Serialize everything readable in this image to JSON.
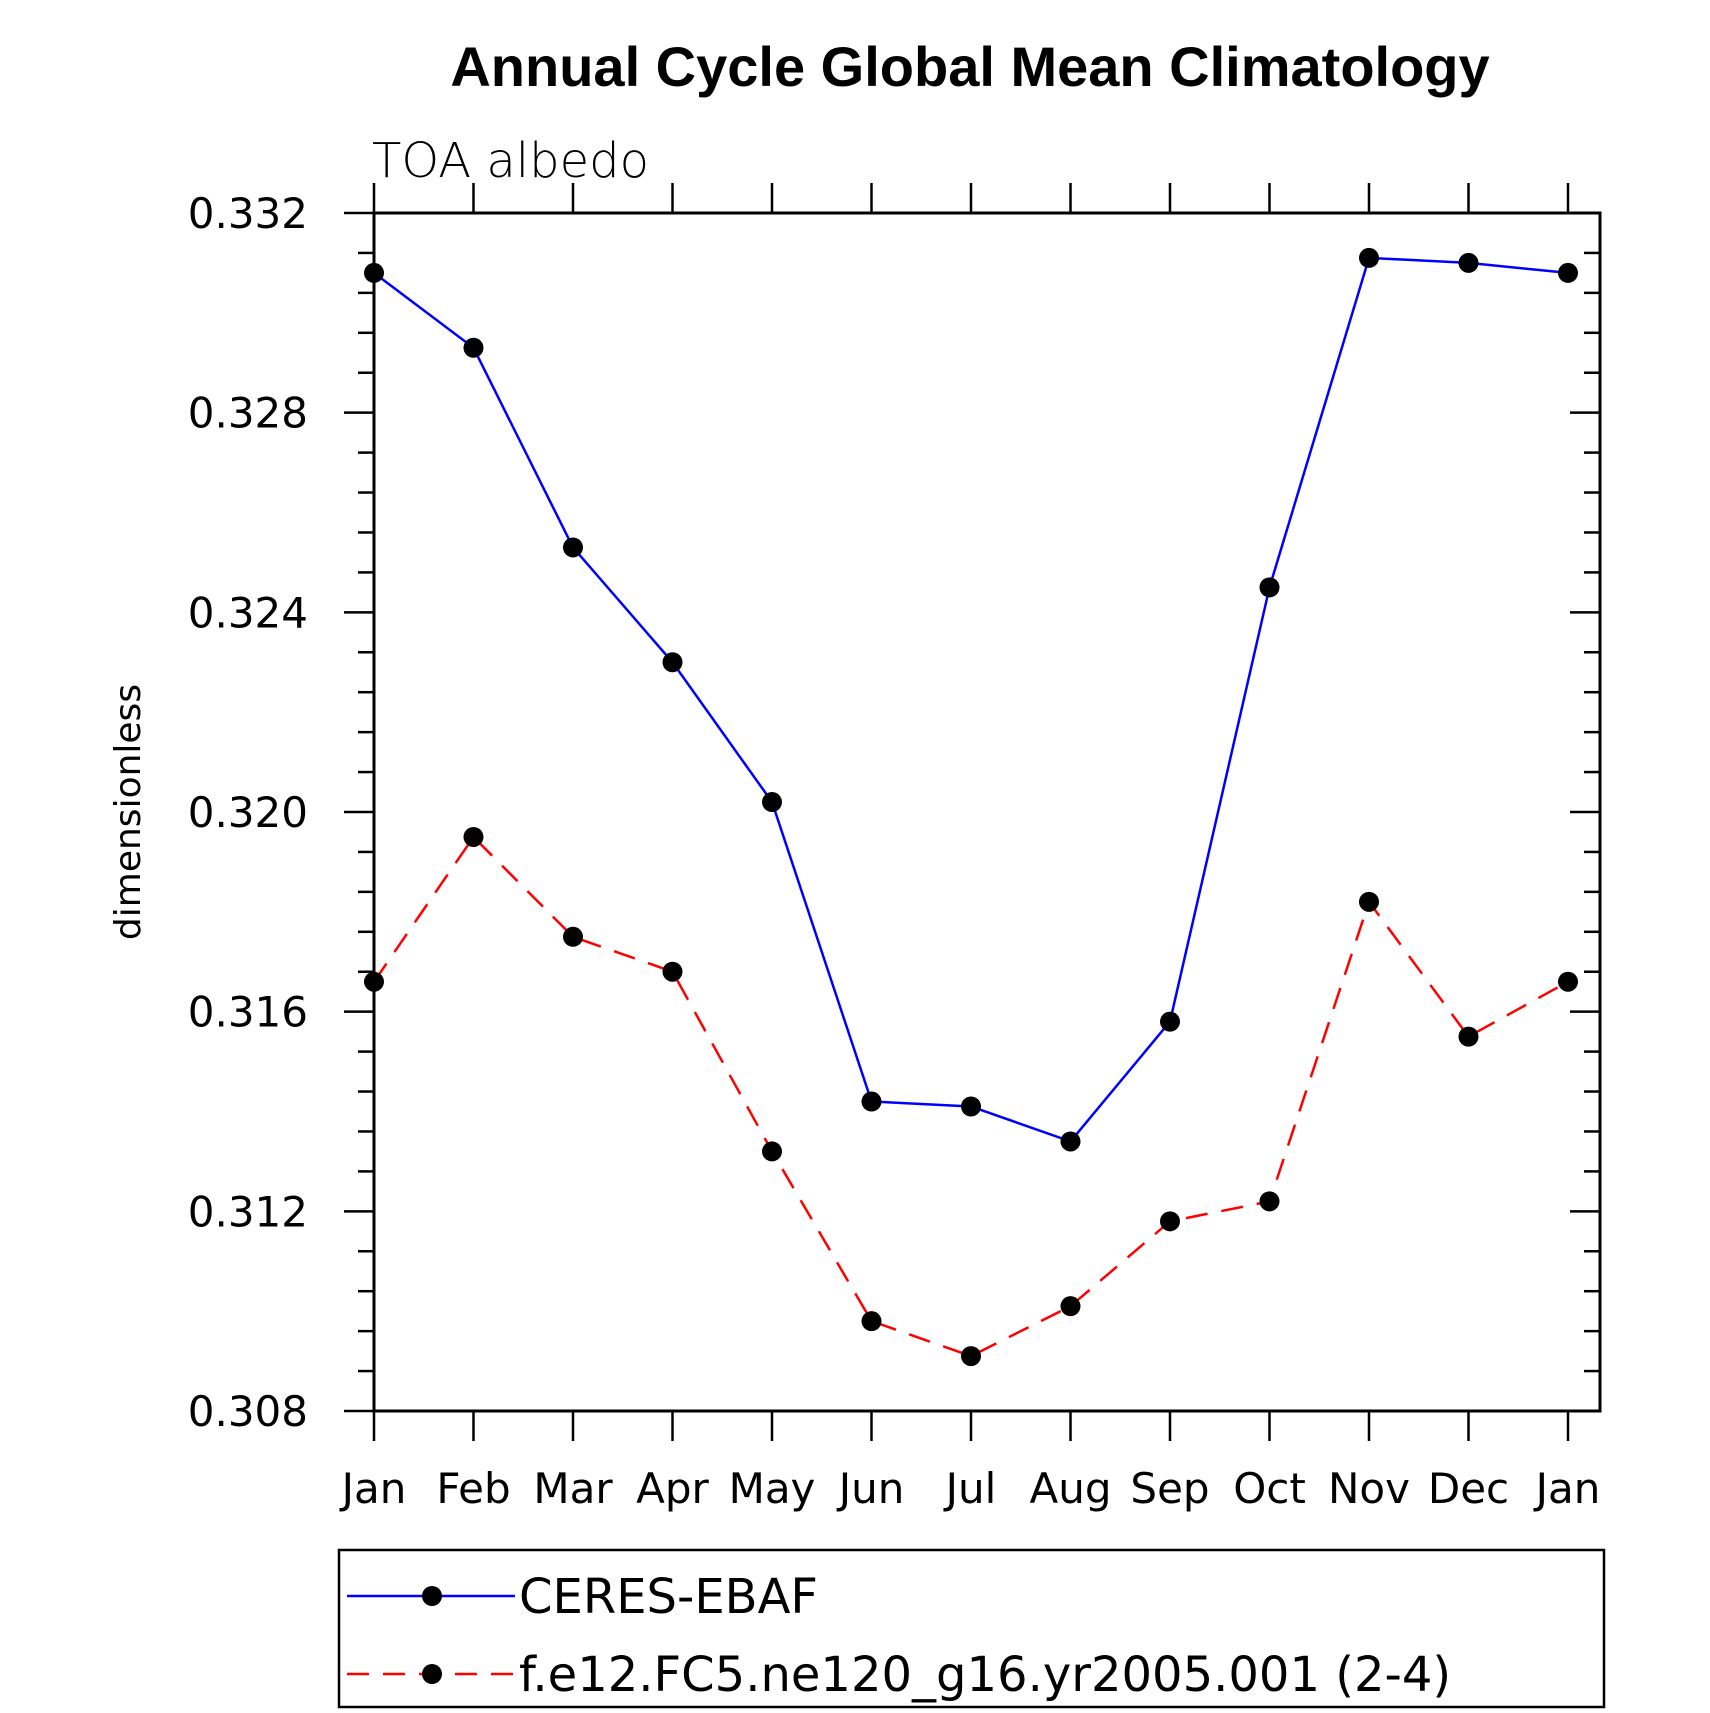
{
  "chart_data": {
    "type": "line",
    "title": "Annual Cycle Global Mean Climatology",
    "subtitle": "TOA albedo",
    "xlabel": "",
    "ylabel": "dimensionless",
    "categories": [
      "Jan",
      "Feb",
      "Mar",
      "Apr",
      "May",
      "Jun",
      "Jul",
      "Aug",
      "Sep",
      "Oct",
      "Nov",
      "Dec",
      "Jan"
    ],
    "ylim": [
      0.308,
      0.332
    ],
    "yticks": [
      "0.308",
      "0.312",
      "0.316",
      "0.320",
      "0.324",
      "0.328",
      "0.332"
    ],
    "legend_position": "bottom",
    "series": [
      {
        "name": "CERES-EBAF",
        "color": "#0000ff",
        "dash": "solid",
        "values": [
          0.3308,
          0.3293,
          0.3253,
          0.323,
          0.3202,
          0.3142,
          0.3141,
          0.3134,
          0.3158,
          0.3245,
          0.3311,
          0.331,
          0.3308
        ]
      },
      {
        "name": "f.e12.FC5.ne120_g16.yr2005.001 (2-4)",
        "color": "#ff0000",
        "dash": "dashed",
        "values": [
          0.3166,
          0.3195,
          0.3175,
          0.3168,
          0.3132,
          0.3098,
          0.3091,
          0.3101,
          0.3118,
          0.3122,
          0.3182,
          0.3155,
          0.3166
        ]
      }
    ]
  }
}
